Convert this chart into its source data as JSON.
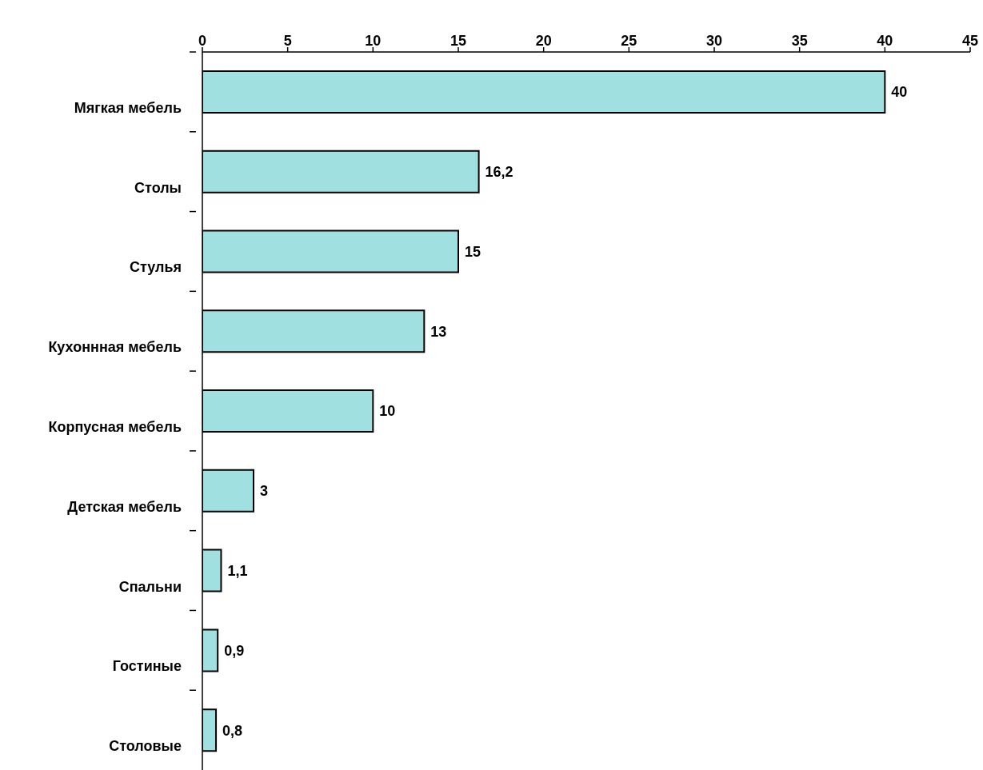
{
  "chart_data": {
    "type": "bar",
    "orientation": "horizontal",
    "categories": [
      "Мягкая мебель",
      "Столы",
      "Стулья",
      "Кухоннная мебель",
      "Корпусная мебель",
      "Детская мебель",
      "Спальни",
      "Гостиные",
      "Столовые"
    ],
    "values": [
      40,
      16.2,
      15,
      13,
      10,
      3,
      1.1,
      0.9,
      0.8
    ],
    "value_labels": [
      "40",
      "16,2",
      "15",
      "13",
      "10",
      "3",
      "1,1",
      "0,9",
      "0,8"
    ],
    "color": "#a0e0e0",
    "xlim": [
      0,
      45
    ],
    "xticks": [
      0,
      5,
      10,
      15,
      20,
      25,
      30,
      35,
      40,
      45
    ],
    "grid": false
  }
}
